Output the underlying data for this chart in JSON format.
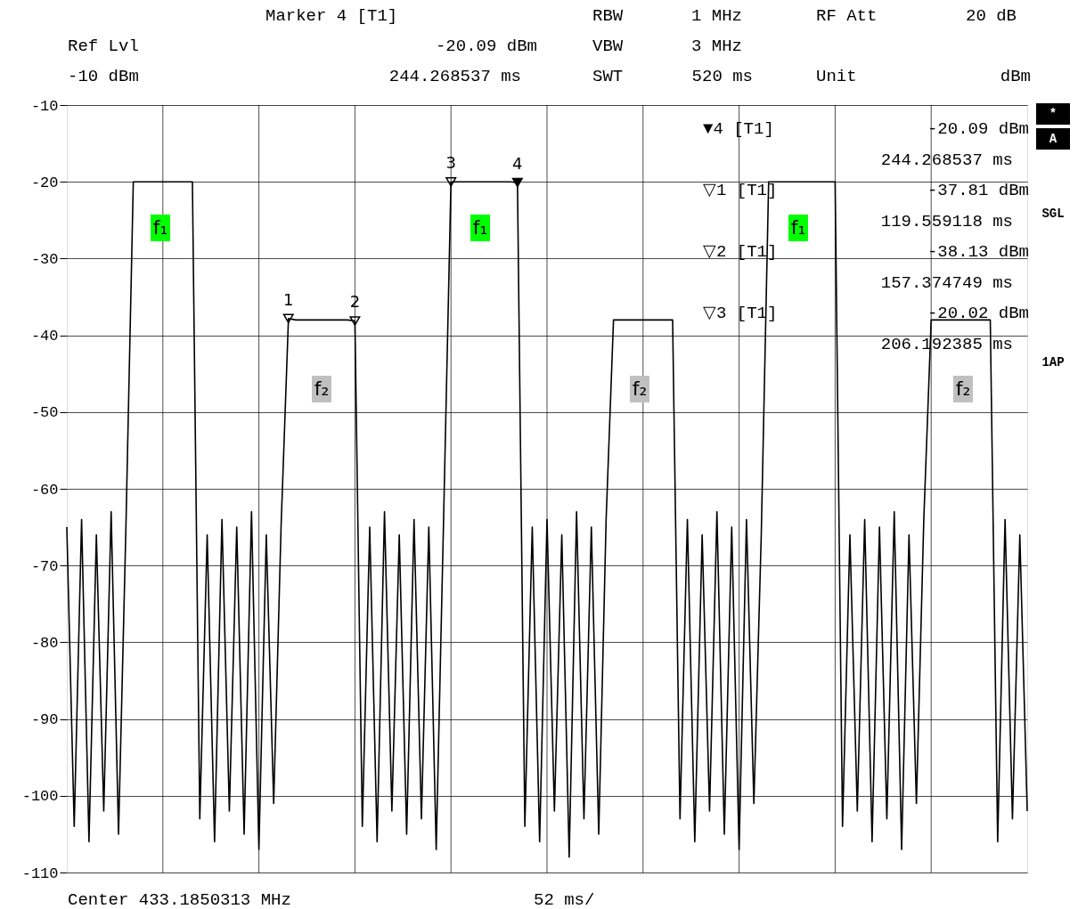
{
  "chart_data": {
    "type": "line",
    "categories": [
      null,
      null,
      null,
      null,
      null,
      null,
      null,
      null,
      null,
      null,
      null,
      null,
      null,
      null,
      null,
      null,
      null,
      null,
      null,
      null,
      null,
      null,
      null,
      null,
      null,
      null,
      null,
      null,
      null,
      null,
      null,
      null,
      null,
      null,
      null,
      null,
      null,
      null,
      null,
      null,
      null,
      null,
      null,
      null,
      null,
      null,
      null,
      null,
      null,
      null,
      null,
      null,
      null,
      null,
      null,
      null,
      null,
      null,
      null,
      null,
      null,
      null,
      null,
      null,
      null,
      null,
      null,
      null,
      null,
      null,
      null,
      null,
      null,
      null,
      null,
      null,
      null,
      null,
      null,
      null,
      null,
      null,
      null,
      null,
      null,
      null,
      null,
      null,
      null,
      null,
      null,
      null,
      null,
      null,
      null,
      null,
      null,
      null,
      null,
      null,
      null,
      null,
      null,
      null,
      null,
      null,
      null,
      null,
      null,
      null,
      null,
      null,
      null,
      null,
      null,
      null,
      null,
      null,
      null,
      null,
      null,
      null,
      null,
      null,
      null,
      null,
      null,
      null,
      null,
      null,
      null
    ],
    "ylim": [
      -110,
      -10
    ],
    "yticks": [
      -110,
      -100,
      -90,
      -80,
      -70,
      -60,
      -50,
      -40,
      -30,
      -20,
      -10
    ],
    "grid": true,
    "series": [
      {
        "color": "#000000",
        "values": [
          -65,
          -104,
          -64,
          -106,
          -66,
          -102,
          -63,
          -105,
          -65,
          -20,
          -20,
          -20,
          -20,
          -20,
          -20,
          -20,
          -20,
          -20,
          -103,
          -66,
          -106,
          -64,
          -102,
          -65,
          -105,
          -63,
          -107,
          -66,
          -101,
          -65,
          -37.81,
          -38,
          -38,
          -38,
          -38,
          -38,
          -38,
          -38,
          -38,
          -38.13,
          -104,
          -65,
          -106,
          -63,
          -102,
          -66,
          -105,
          -64,
          -103,
          -65,
          -107,
          -64,
          -20.02,
          -20,
          -20,
          -20,
          -20,
          -20,
          -20,
          -20,
          -20,
          -20.09,
          -104,
          -65,
          -106,
          -64,
          -102,
          -66,
          -108,
          -63,
          -103,
          -65,
          -105,
          -64,
          -38,
          -38,
          -38,
          -38,
          -38,
          -38,
          -38,
          -38,
          -38,
          -103,
          -64,
          -106,
          -66,
          -102,
          -63,
          -105,
          -65,
          -107,
          -64,
          -101,
          -66,
          -20,
          -20,
          -20,
          -20,
          -20,
          -20,
          -20,
          -20,
          -20,
          -20,
          -104,
          -66,
          -102,
          -64,
          -106,
          -65,
          -103,
          -63,
          -107,
          -66,
          -101,
          -64,
          -38,
          -38,
          -38,
          -38,
          -38,
          -38,
          -38,
          -38,
          -38,
          -106,
          -64,
          -103,
          -66,
          -102
        ]
      },
      {
        "type": "scatter",
        "marker": "triangle",
        "color": "#000000",
        "values": [
          null,
          null,
          null,
          null,
          null,
          null,
          null,
          null,
          null,
          null,
          null,
          null,
          null,
          null,
          null,
          null,
          null,
          null,
          null,
          null,
          null,
          null,
          null,
          null,
          null,
          null,
          null,
          null,
          null,
          null,
          -37.81,
          null,
          null,
          null,
          null,
          null,
          null,
          null,
          null,
          -38.13,
          null,
          null,
          null,
          null,
          null,
          null,
          null,
          null,
          null,
          null,
          null,
          null,
          -20.02,
          null,
          null,
          null,
          null,
          null,
          null,
          null,
          null,
          -20.09,
          null,
          null,
          null,
          null,
          null,
          null,
          null,
          null,
          null,
          null,
          null,
          null,
          null,
          null,
          null,
          null,
          null,
          null,
          null,
          null,
          null,
          null,
          null,
          null,
          null,
          null,
          null,
          null,
          null,
          null,
          null,
          null,
          null,
          null,
          null,
          null,
          null,
          null,
          null,
          null,
          null,
          null,
          null,
          null,
          null,
          null,
          null,
          null,
          null,
          null,
          null,
          null,
          null,
          null,
          null,
          null,
          null,
          null,
          null,
          null,
          null,
          null,
          null,
          null,
          null,
          null,
          null,
          null,
          null
        ]
      }
    ],
    "annotations": [
      {
        "text": "1",
        "y": -37.81
      },
      {
        "text": "2",
        "y": -38.13
      },
      {
        "text": "3",
        "y": -20.02
      },
      {
        "text": "4",
        "y": -20.09
      },
      "f₁",
      "f₁",
      "f₁",
      "f₂",
      "f₂",
      "f₂",
      "Marker 4 [T1]",
      "Ref Lvl",
      "-20.09 dBm",
      "-10 dBm",
      "244.268537 ms",
      "RBW",
      "1 MHz",
      "RF Att",
      "20 dB",
      "VBW",
      "3 MHz",
      "SWT",
      "520 ms",
      "Unit",
      "dBm",
      "▼4 [T1]",
      "-20.09 dBm",
      "244.268537 ms",
      "▽1 [T1]",
      "-37.81 dBm",
      "119.559118 ms",
      "▽2 [T1]",
      "-38.13 dBm",
      "157.374749 ms",
      "▽3 [T1]",
      "-20.02 dBm",
      "206.192385 ms",
      "*",
      "A",
      "SGL",
      "1AP",
      "Center 433.1850313 MHz",
      "52 ms/"
    ]
  }
}
